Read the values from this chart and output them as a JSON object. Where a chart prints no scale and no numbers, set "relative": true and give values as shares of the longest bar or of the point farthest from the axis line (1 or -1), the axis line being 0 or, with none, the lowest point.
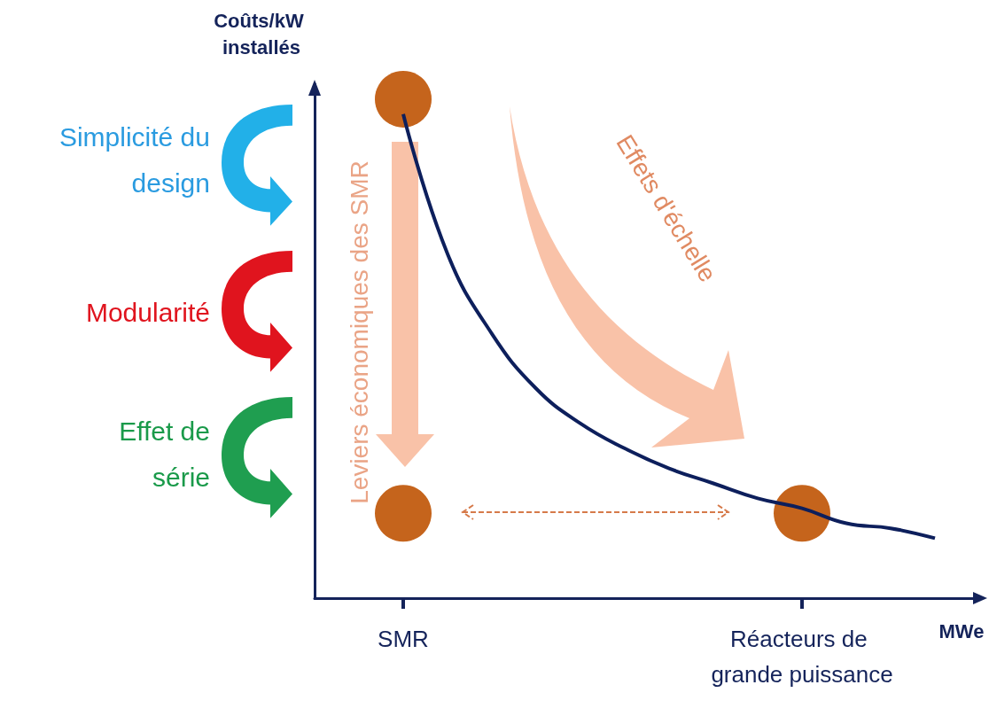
{
  "chart_data": {
    "type": "line",
    "relative": true,
    "xlabel": "MWe",
    "ylabel": "Coûts/kW installés",
    "categories": [
      null,
      null,
      "SMR",
      null,
      null,
      null,
      null,
      null,
      null,
      null,
      null,
      "Réacteurs de grande puissance",
      null,
      null,
      null,
      null
    ],
    "series": [
      {
        "color": "#0d1f5c",
        "marker": "none",
        "values": [
          null,
          null,
          0.97,
          0.69,
          0.53,
          0.42,
          0.35,
          0.3,
          0.26,
          0.23,
          0.2,
          0.18,
          0.15,
          0.14,
          0.12,
          null
        ]
      },
      {
        "type": "scatter",
        "color": "#c5641c",
        "marker": "circle",
        "x": [
          "SMR",
          "SMR",
          "Réacteurs de grande puissance"
        ],
        "values": [
          1,
          0.17,
          0.17
        ]
      }
    ],
    "annotations": [
      "Simplicité du design",
      "Modularité",
      "Effet de série",
      "Leviers économiques des SMR",
      "Effets d'échelle"
    ]
  }
}
